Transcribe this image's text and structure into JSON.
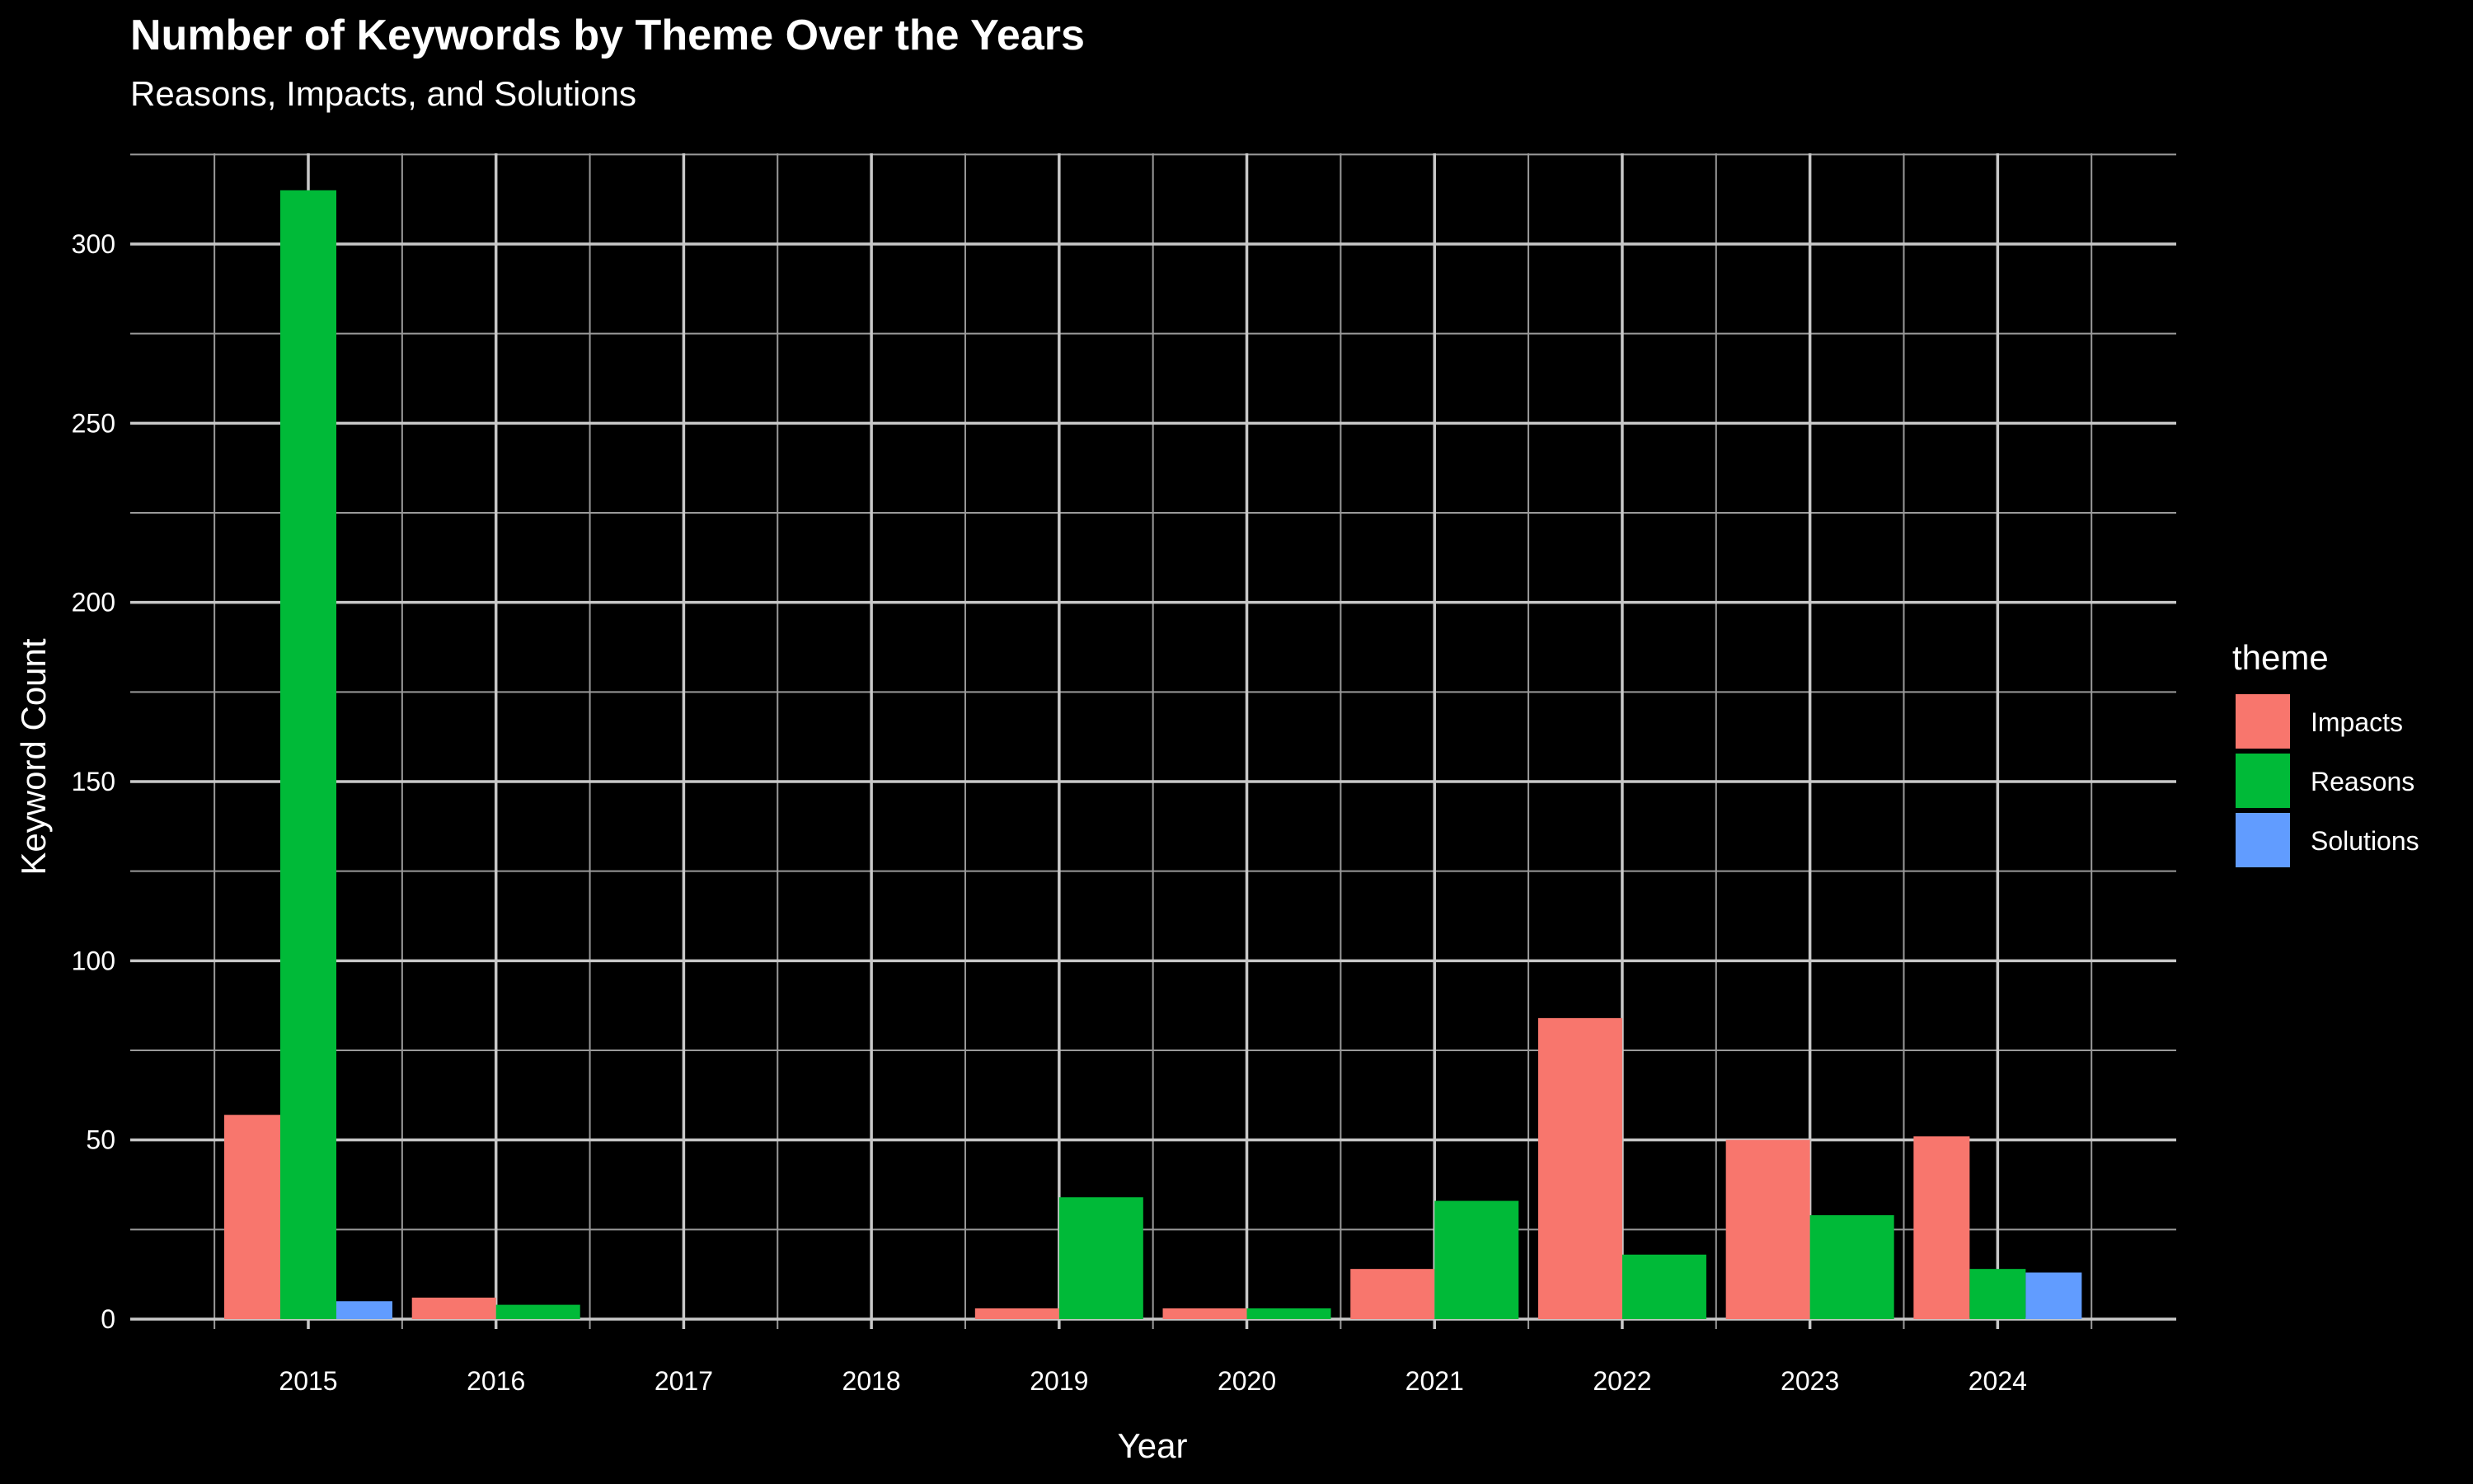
{
  "chart_data": {
    "type": "bar",
    "title": "Number of Keywords by Theme Over the Years",
    "subtitle": "Reasons, Impacts, and Solutions",
    "xlabel": "Year",
    "ylabel": "Keyword Count",
    "categories": [
      "2015",
      "2016",
      "2017",
      "2018",
      "2019",
      "2020",
      "2021",
      "2022",
      "2023",
      "2024"
    ],
    "series": [
      {
        "name": "Impacts",
        "color": "#F8766D",
        "values": [
          57,
          6,
          null,
          null,
          3,
          3,
          14,
          84,
          50,
          51
        ]
      },
      {
        "name": "Reasons",
        "color": "#00BA38",
        "values": [
          315,
          4,
          null,
          null,
          34,
          3,
          33,
          18,
          29,
          14
        ]
      },
      {
        "name": "Solutions",
        "color": "#619CFF",
        "values": [
          5,
          null,
          null,
          null,
          null,
          null,
          null,
          null,
          null,
          13
        ]
      }
    ],
    "ylim": [
      0,
      330
    ],
    "yticks": [
      0,
      50,
      100,
      150,
      200,
      250,
      300
    ],
    "grid": true,
    "legend": {
      "title": "theme",
      "position": "right"
    }
  }
}
